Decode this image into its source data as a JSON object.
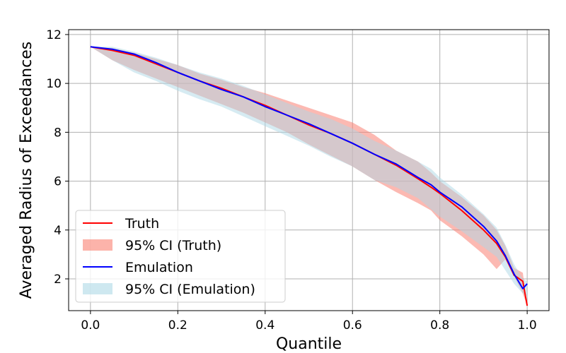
{
  "chart_data": {
    "type": "line",
    "title": "",
    "xlabel": "Quantile",
    "ylabel": "Averaged Radius of Exceedances",
    "xlim": [
      -0.05,
      1.05
    ],
    "ylim": [
      0.7,
      12.2
    ],
    "grid": true,
    "legend_position": "lower-left",
    "x_ticks": [
      0.0,
      0.2,
      0.4,
      0.6,
      0.8,
      1.0
    ],
    "x_tick_labels": [
      "0.0",
      "0.2",
      "0.4",
      "0.6",
      "0.8",
      "1.0"
    ],
    "y_ticks": [
      2,
      4,
      6,
      8,
      10,
      12
    ],
    "y_tick_labels": [
      "2",
      "4",
      "6",
      "8",
      "10",
      "12"
    ],
    "x": [
      0.0,
      0.05,
      0.1,
      0.15,
      0.2,
      0.25,
      0.3,
      0.35,
      0.4,
      0.45,
      0.5,
      0.55,
      0.6,
      0.65,
      0.7,
      0.75,
      0.78,
      0.8,
      0.85,
      0.9,
      0.93,
      0.95,
      0.97,
      0.99,
      1.0
    ],
    "series": [
      {
        "name": "Truth",
        "kind": "line",
        "color": "#ff0000",
        "values": [
          11.5,
          11.35,
          11.15,
          10.8,
          10.45,
          10.1,
          9.8,
          9.45,
          9.1,
          8.7,
          8.3,
          7.95,
          7.55,
          7.1,
          6.65,
          6.1,
          5.75,
          5.5,
          4.8,
          4.0,
          3.45,
          2.9,
          2.15,
          1.9,
          0.9
        ]
      },
      {
        "name": "95% CI (Truth)",
        "kind": "band",
        "color": "#fa8072",
        "opacity": 0.55,
        "lower": [
          11.5,
          10.95,
          10.55,
          10.2,
          9.85,
          9.5,
          9.15,
          8.8,
          8.4,
          8.0,
          7.5,
          7.05,
          6.6,
          6.05,
          5.55,
          5.1,
          4.8,
          4.4,
          3.75,
          3.0,
          2.4,
          2.8,
          2.1,
          1.4,
          0.9
        ],
        "upper": [
          11.5,
          11.45,
          11.25,
          11.0,
          10.75,
          10.4,
          10.15,
          9.85,
          9.6,
          9.3,
          9.0,
          8.7,
          8.4,
          7.9,
          7.25,
          6.8,
          6.35,
          6.0,
          5.35,
          4.6,
          4.0,
          3.35,
          2.45,
          2.25,
          0.9
        ]
      },
      {
        "name": "Emulation",
        "kind": "line",
        "color": "#0000ff",
        "values": [
          11.5,
          11.4,
          11.2,
          10.85,
          10.45,
          10.1,
          9.75,
          9.45,
          9.05,
          8.7,
          8.35,
          7.95,
          7.55,
          7.1,
          6.7,
          6.15,
          5.85,
          5.55,
          4.95,
          4.15,
          3.55,
          2.95,
          2.2,
          1.6,
          1.8
        ]
      },
      {
        "name": "95% CI (Emulation)",
        "kind": "band",
        "color": "#add8e6",
        "opacity": 0.5,
        "lower": [
          11.5,
          10.95,
          10.45,
          10.1,
          9.7,
          9.35,
          9.05,
          8.65,
          8.25,
          7.85,
          7.45,
          7.0,
          6.6,
          6.05,
          5.75,
          5.3,
          4.85,
          4.55,
          3.95,
          3.3,
          2.9,
          2.35,
          1.8,
          1.4,
          1.3
        ],
        "upper": [
          11.5,
          11.5,
          11.3,
          11.05,
          10.75,
          10.45,
          10.2,
          9.9,
          9.55,
          9.2,
          8.85,
          8.55,
          8.15,
          7.65,
          7.25,
          6.8,
          6.5,
          6.15,
          5.45,
          4.65,
          4.1,
          3.4,
          2.6,
          2.0,
          1.9
        ]
      }
    ],
    "legend": [
      {
        "label": "Truth",
        "kind": "line",
        "color": "#ff0000"
      },
      {
        "label": "95% CI (Truth)",
        "kind": "band",
        "color": "#fa8072"
      },
      {
        "label": "Emulation",
        "kind": "line",
        "color": "#0000ff"
      },
      {
        "label": "95% CI (Emulation)",
        "kind": "band",
        "color": "#add8e6"
      }
    ]
  }
}
